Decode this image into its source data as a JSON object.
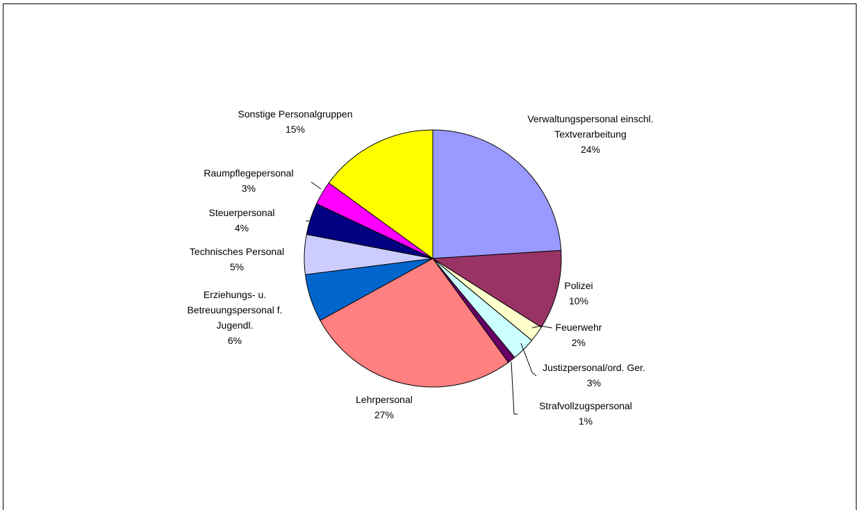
{
  "chart_data": {
    "type": "pie",
    "categories": [
      "Verwaltungspersonal einschl. Textverarbeitung",
      "Polizei",
      "Feuerwehr",
      "Justizpersonal/ord. Ger.",
      "Strafvollzugspersonal",
      "Lehrpersonal",
      "Erziehungs- u. Betreuungspersonal f. Jugendl.",
      "Technisches Personal",
      "Steuerpersonal",
      "Raumpflegepersonal",
      "Sonstige Personalgruppen"
    ],
    "values": [
      24,
      10,
      2,
      3,
      1,
      27,
      6,
      5,
      4,
      3,
      15
    ],
    "value_labels": [
      "24%",
      "10%",
      "2%",
      "3%",
      "1%",
      "27%",
      "6%",
      "5%",
      "4%",
      "3%",
      "15%"
    ],
    "colors": [
      "#9999ff",
      "#993366",
      "#ffffcc",
      "#ccffff",
      "#660066",
      "#ff8080",
      "#0066cc",
      "#ccccff",
      "#000080",
      "#ff00ff",
      "#ffff00"
    ]
  }
}
